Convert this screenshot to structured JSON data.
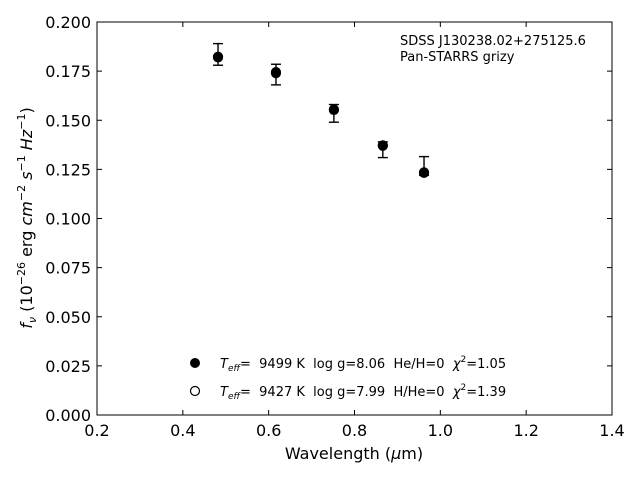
{
  "chart_data": {
    "type": "scatter",
    "title": "",
    "xlabel": "Wavelength (μm)",
    "xlabel_parts": {
      "pre": "Wavelength (",
      "mu": "μ",
      "post": "m)"
    },
    "ylabel": "f_ν (10^-26 erg cm^-2 s^-1 Hz^-1)",
    "ylabel_parts": {
      "f": "f",
      "nu": "ν",
      "open": " (10",
      "e26": "−26",
      "erg": " erg ",
      "cm": "cm",
      "e2": "−2",
      "s": " s",
      "e1a": "−1",
      "hz": " Hz",
      "e1b": "−1",
      "close": ")"
    },
    "xlim": [
      0.2,
      1.4
    ],
    "ylim": [
      0.0,
      0.2
    ],
    "xticks": [
      "0.2",
      "0.4",
      "0.6",
      "0.8",
      "1.0",
      "1.2",
      "1.4"
    ],
    "yticks": [
      "0.000",
      "0.025",
      "0.050",
      "0.075",
      "0.100",
      "0.125",
      "0.150",
      "0.175",
      "0.200"
    ],
    "grid": false,
    "annotation": [
      "SDSS J130238.02+275125.6",
      "Pan-STARRS grizy"
    ],
    "observed": {
      "x": [
        0.482,
        0.617,
        0.752,
        0.866,
        0.962
      ],
      "y": [
        0.1815,
        0.1745,
        0.1535,
        0.1345,
        0.1245
      ],
      "yerr_low": [
        0.0035,
        0.0065,
        0.0045,
        0.0035,
        0.0025
      ],
      "yerr_high": [
        0.0075,
        0.004,
        0.0045,
        0.0045,
        0.007
      ]
    },
    "series": [
      {
        "marker": "filled",
        "x": [
          0.482,
          0.617,
          0.752,
          0.866,
          0.962
        ],
        "y": [
          0.182,
          0.174,
          0.1552,
          0.137,
          0.1232
        ],
        "legend": {
          "teff_sym": "T",
          "teff_sub": "eff",
          "rest": "=  9499 K  log g=8.06  He/H=0  ",
          "chi": "χ",
          "chi_sup": "2",
          "chi_val": "=1.05"
        }
      },
      {
        "marker": "open",
        "x": [
          0.482,
          0.617,
          0.752,
          0.866,
          0.962
        ],
        "y": [
          0.1823,
          0.1745,
          0.1555,
          0.1372,
          0.1235
        ],
        "legend": {
          "teff_sym": "T",
          "teff_sub": "eff",
          "rest": "=  9427 K  log g=7.99  H/He=0  ",
          "chi": "χ",
          "chi_sup": "2",
          "chi_val": "=1.39"
        }
      }
    ],
    "legend_position": "lower-center"
  }
}
